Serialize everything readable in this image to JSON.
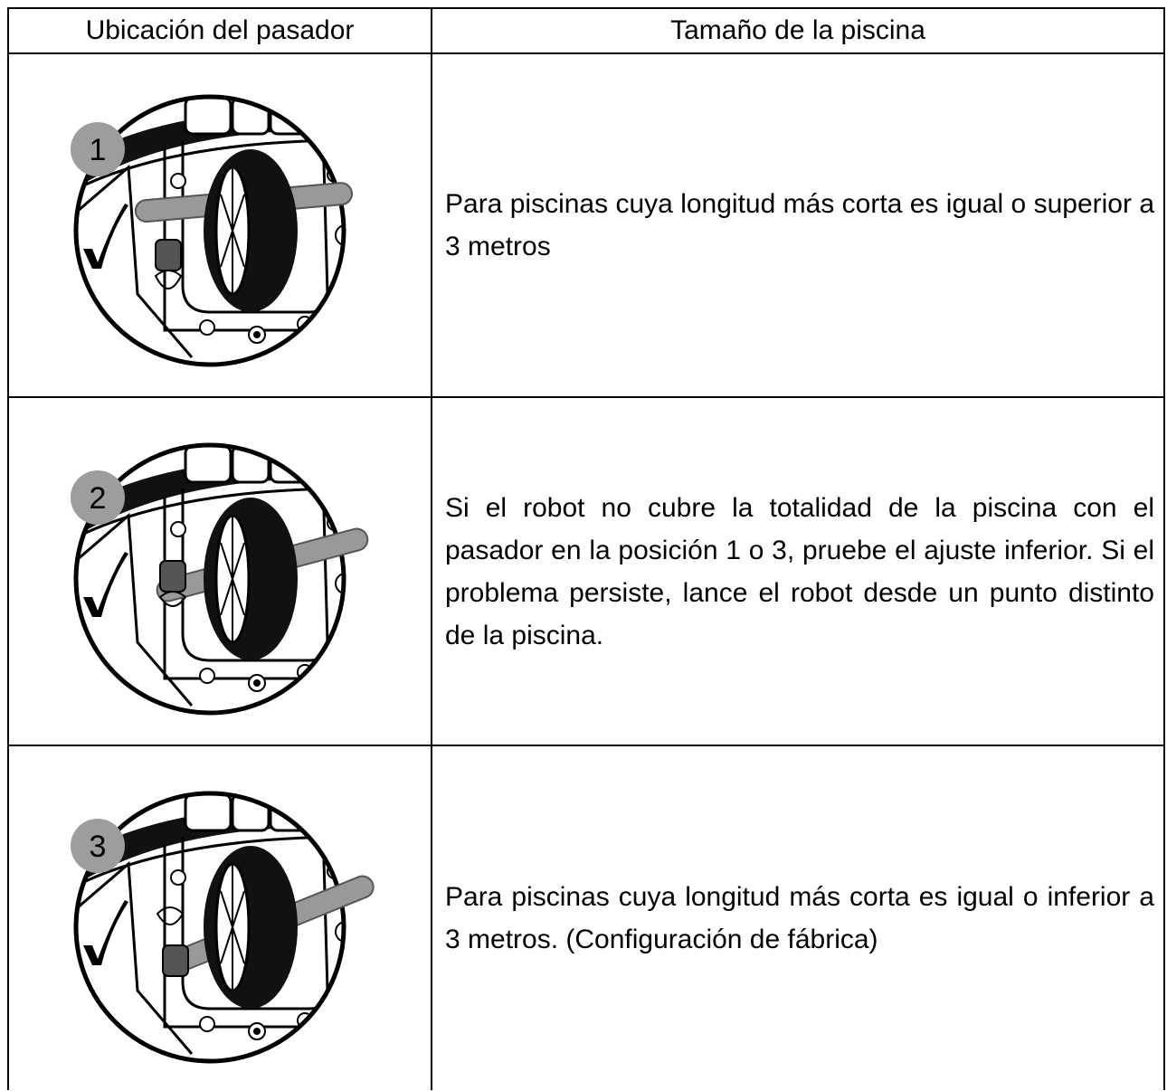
{
  "table": {
    "header": [
      "Ubicación del pasador",
      "Tamaño de la piscina"
    ],
    "rows": [
      {
        "badge": "1",
        "text": "Para piscinas cuya longitud más corta es igual o superior a 3 metros"
      },
      {
        "badge": "2",
        "text": "Si el robot no cubre la totalidad de la piscina con el pasador en la posición 1 o 3, pruebe el ajuste inferior. Si el problema persiste, lance el robot desde un punto distinto de la piscina."
      },
      {
        "badge": "3",
        "text": "Para piscinas cuya longitud más corta es igual o inferior a 3 metros. (Configuración de fábrica)"
      }
    ]
  }
}
